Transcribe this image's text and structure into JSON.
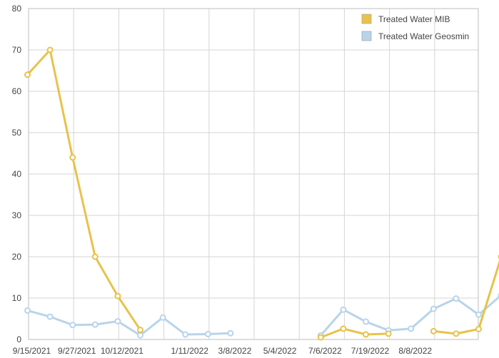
{
  "chart_data": {
    "type": "line",
    "ylim": [
      0,
      80
    ],
    "y_ticks": [
      "0",
      "10",
      "20",
      "30",
      "40",
      "50",
      "60",
      "70",
      "80"
    ],
    "x_tick_labels": [
      "9/15/2021",
      "9/27/2021",
      "10/12/2021",
      "1/11/2022",
      "3/8/2022",
      "5/4/2022",
      "7/6/2022",
      "7/19/2022",
      "8/8/2022"
    ],
    "grid": true,
    "legend_position": "top-right",
    "series": [
      {
        "name": "Treated Water MIB",
        "color": "#e8c24a",
        "values": [
          64,
          70,
          44,
          20,
          10.5,
          2.3,
          null,
          null,
          null,
          null,
          null,
          null,
          null,
          0.5,
          2.6,
          1.2,
          1.4,
          null,
          2,
          1.4,
          2.5,
          20
        ]
      },
      {
        "name": "Treated Water Geosmin",
        "color": "#b8d4ea",
        "values": [
          7,
          5.5,
          3.5,
          3.6,
          4.4,
          1,
          5.3,
          1.2,
          1.3,
          1.5,
          null,
          null,
          null,
          1,
          7.2,
          4.3,
          2.2,
          2.6,
          7.4,
          9.9,
          6,
          10.7
        ]
      }
    ]
  }
}
